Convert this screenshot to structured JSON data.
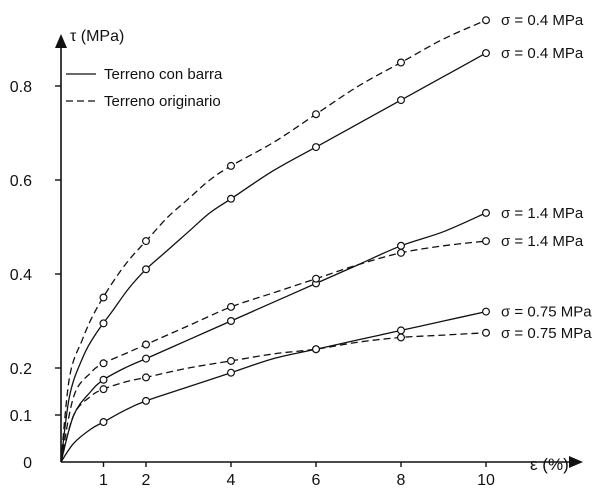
{
  "chart_data": {
    "type": "line",
    "title": "",
    "ylabel": "τ (MPa)",
    "xlabel": "ε (%)",
    "xlim": [
      0,
      11.5
    ],
    "ylim": [
      0,
      0.95
    ],
    "x_ticks": [
      {
        "value": 1,
        "label": "1"
      },
      {
        "value": 2,
        "label": "2"
      },
      {
        "value": 4,
        "label": "4"
      },
      {
        "value": 6,
        "label": "6"
      },
      {
        "value": 8,
        "label": "8"
      },
      {
        "value": 10,
        "label": "10"
      }
    ],
    "y_ticks": [
      {
        "value": 0,
        "label": "0"
      },
      {
        "value": 0.1,
        "label": "0.1"
      },
      {
        "value": 0.2,
        "label": "0.2"
      },
      {
        "value": 0.4,
        "label": "0.4"
      },
      {
        "value": 0.6,
        "label": "0.6"
      },
      {
        "value": 0.8,
        "label": "0.8"
      }
    ],
    "legend": [
      {
        "label": "Terreno con barra",
        "style": "solid"
      },
      {
        "label": "Terreno originario",
        "style": "dashed"
      }
    ],
    "series": [
      {
        "label": "σ = 0.4 MPa",
        "style": "dashed",
        "x": [
          0,
          0.2,
          0.5,
          0.8,
          1.2,
          1.6,
          2.0,
          2.5,
          3.0,
          3.5,
          4.0,
          5.0,
          6.0,
          7.0,
          8.0,
          9.0,
          10.0
        ],
        "y": [
          0,
          0.18,
          0.26,
          0.32,
          0.38,
          0.43,
          0.47,
          0.52,
          0.56,
          0.6,
          0.63,
          0.68,
          0.74,
          0.8,
          0.85,
          0.9,
          0.94
        ]
      },
      {
        "label": "σ = 0.4 MPa",
        "style": "solid",
        "x": [
          0,
          0.2,
          0.5,
          0.8,
          1.2,
          1.6,
          2.0,
          2.5,
          3.0,
          3.5,
          4.0,
          5.0,
          6.0,
          7.0,
          8.0,
          9.0,
          10.0
        ],
        "y": [
          0,
          0.14,
          0.22,
          0.27,
          0.32,
          0.37,
          0.41,
          0.45,
          0.49,
          0.53,
          0.56,
          0.62,
          0.67,
          0.72,
          0.77,
          0.82,
          0.87
        ]
      },
      {
        "label": "σ = 1.4 MPa",
        "style": "solid",
        "x": [
          0,
          0.3,
          0.7,
          1.0,
          1.5,
          2.0,
          3.0,
          4.0,
          5.0,
          6.0,
          7.0,
          8.0,
          9.0,
          10.0
        ],
        "y": [
          0,
          0.1,
          0.15,
          0.175,
          0.2,
          0.22,
          0.26,
          0.3,
          0.34,
          0.38,
          0.42,
          0.46,
          0.49,
          0.53
        ]
      },
      {
        "label": "σ = 1.4 MPa",
        "style": "dashed",
        "x": [
          0,
          0.3,
          0.7,
          1.0,
          1.5,
          2.0,
          3.0,
          4.0,
          5.0,
          6.0,
          7.0,
          8.0,
          9.0,
          10.0
        ],
        "y": [
          0,
          0.14,
          0.19,
          0.21,
          0.23,
          0.25,
          0.29,
          0.33,
          0.36,
          0.39,
          0.42,
          0.445,
          0.46,
          0.47
        ]
      },
      {
        "label": "σ = 0.75 MPa",
        "style": "solid",
        "x": [
          0,
          0.3,
          0.7,
          1.0,
          1.5,
          2.0,
          3.0,
          4.0,
          5.0,
          6.0,
          7.0,
          8.0,
          9.0,
          10.0
        ],
        "y": [
          0,
          0.04,
          0.07,
          0.085,
          0.11,
          0.13,
          0.16,
          0.19,
          0.22,
          0.24,
          0.26,
          0.28,
          0.3,
          0.32
        ]
      },
      {
        "label": "σ = 0.75 MPa",
        "style": "dashed",
        "x": [
          0,
          0.3,
          0.7,
          1.0,
          1.5,
          2.0,
          3.0,
          4.0,
          5.0,
          6.0,
          7.0,
          8.0,
          9.0,
          10.0
        ],
        "y": [
          0,
          0.1,
          0.14,
          0.155,
          0.17,
          0.18,
          0.2,
          0.215,
          0.23,
          0.24,
          0.255,
          0.265,
          0.27,
          0.275
        ]
      }
    ],
    "markers": [
      {
        "series": 0,
        "x": [
          1,
          2,
          4,
          6,
          8,
          10
        ]
      },
      {
        "series": 1,
        "x": [
          1,
          2,
          4,
          6,
          8,
          10
        ]
      },
      {
        "series": 2,
        "x": [
          1,
          2,
          4,
          6,
          8,
          10
        ]
      },
      {
        "series": 3,
        "x": [
          1,
          2,
          4,
          6,
          8,
          10
        ]
      },
      {
        "series": 4,
        "x": [
          1,
          2,
          4,
          6,
          8,
          10
        ]
      },
      {
        "series": 5,
        "x": [
          1,
          2,
          4,
          6,
          8,
          10
        ]
      }
    ]
  }
}
